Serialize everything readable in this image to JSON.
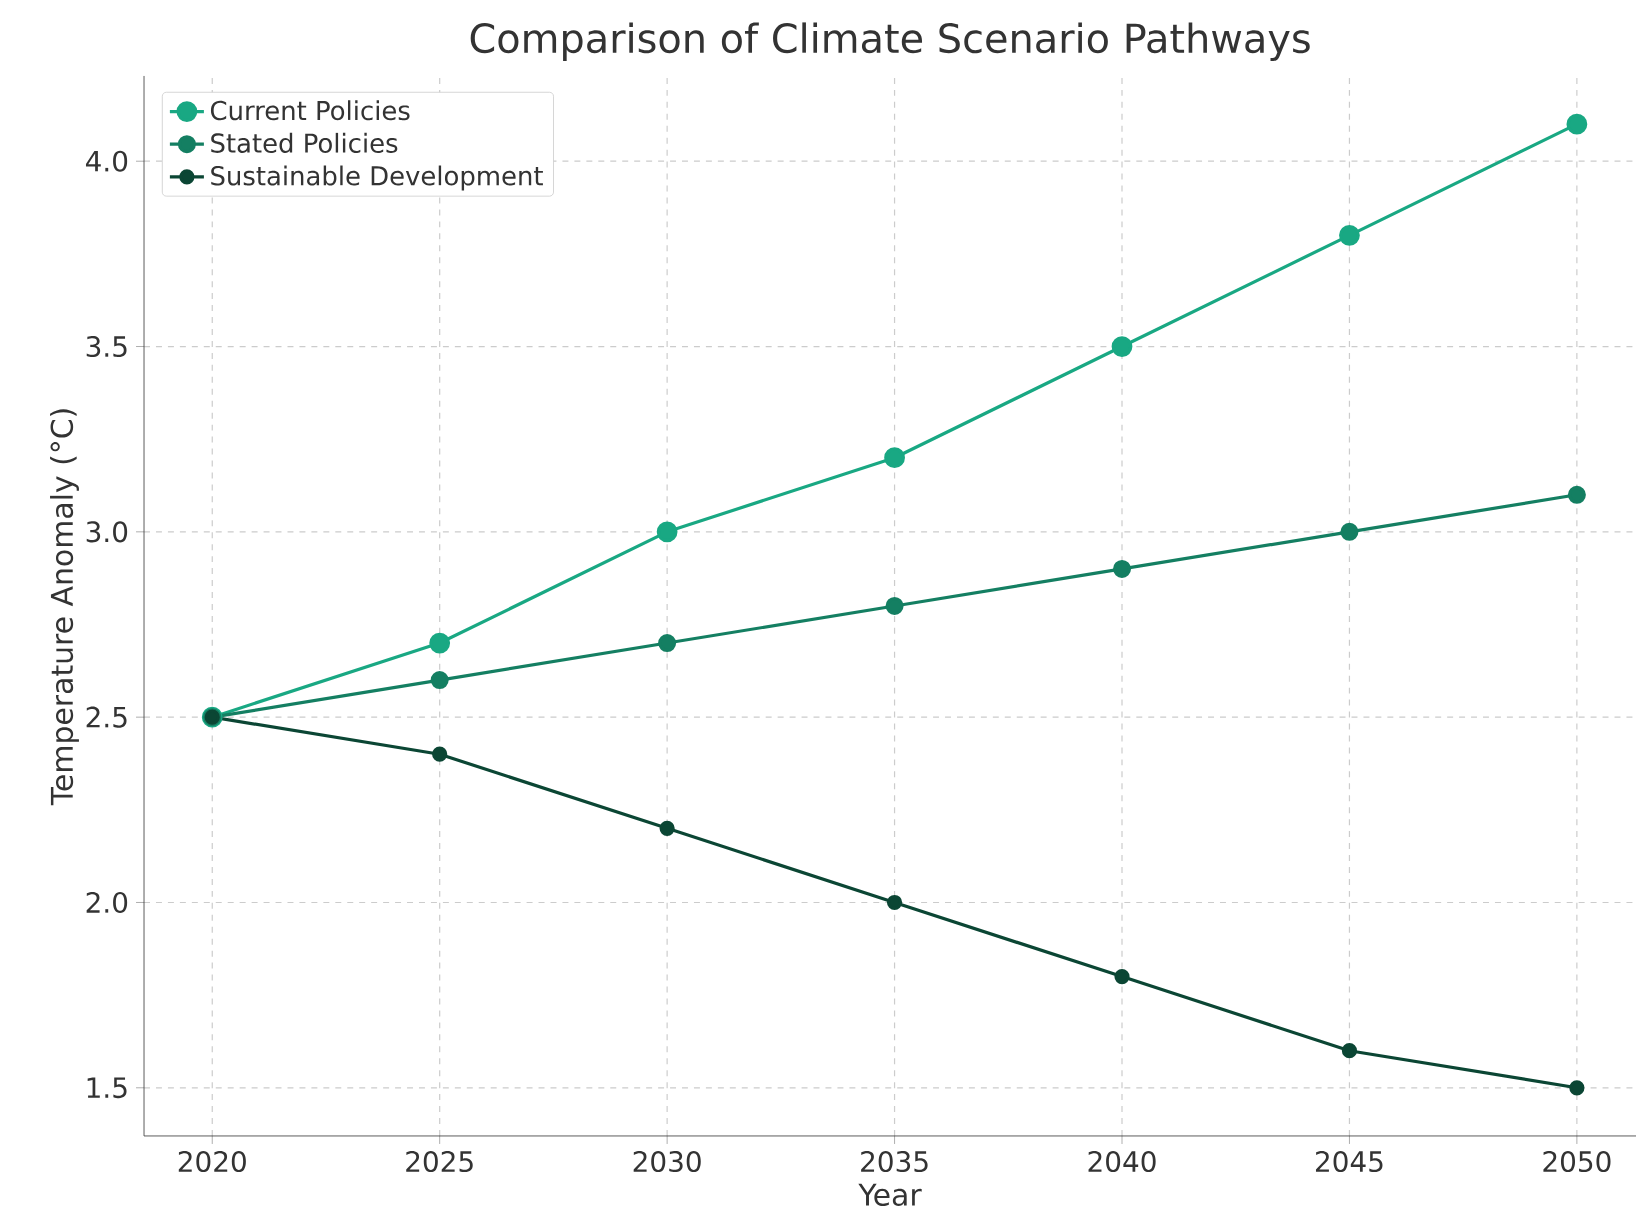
{
  "chart_data": {
    "type": "line",
    "title": "Comparison of Climate Scenario Pathways",
    "xlabel": "Year",
    "ylabel": "Temperature Anomaly (°C)",
    "x": [
      2020,
      2025,
      2030,
      2035,
      2040,
      2045,
      2050
    ],
    "series": [
      {
        "name": "Current Policies",
        "color": "#19a883",
        "values": [
          2.5,
          2.7,
          3.0,
          3.2,
          3.5,
          3.8,
          4.1
        ]
      },
      {
        "name": "Stated Policies",
        "color": "#147f62",
        "values": [
          2.5,
          2.6,
          2.7,
          2.8,
          2.9,
          3.0,
          3.1
        ]
      },
      {
        "name": "Sustainable Development",
        "color": "#0b4634",
        "values": [
          2.5,
          2.4,
          2.2,
          2.0,
          1.8,
          1.6,
          1.5
        ]
      }
    ],
    "xlim": [
      2018.5,
      2051.3
    ],
    "ylim": [
      1.37,
      4.23
    ],
    "xticks": [
      2020,
      2025,
      2030,
      2035,
      2040,
      2045,
      2050
    ],
    "yticks": [
      1.5,
      {
        "value": 2,
        "label": "2.0"
      },
      2.5,
      {
        "value": 3,
        "label": "3.0"
      },
      3.5,
      {
        "value": 4,
        "label": "4.0"
      }
    ],
    "grid": true,
    "legend": "top left",
    "marker": "circle",
    "line_style": "solid"
  }
}
